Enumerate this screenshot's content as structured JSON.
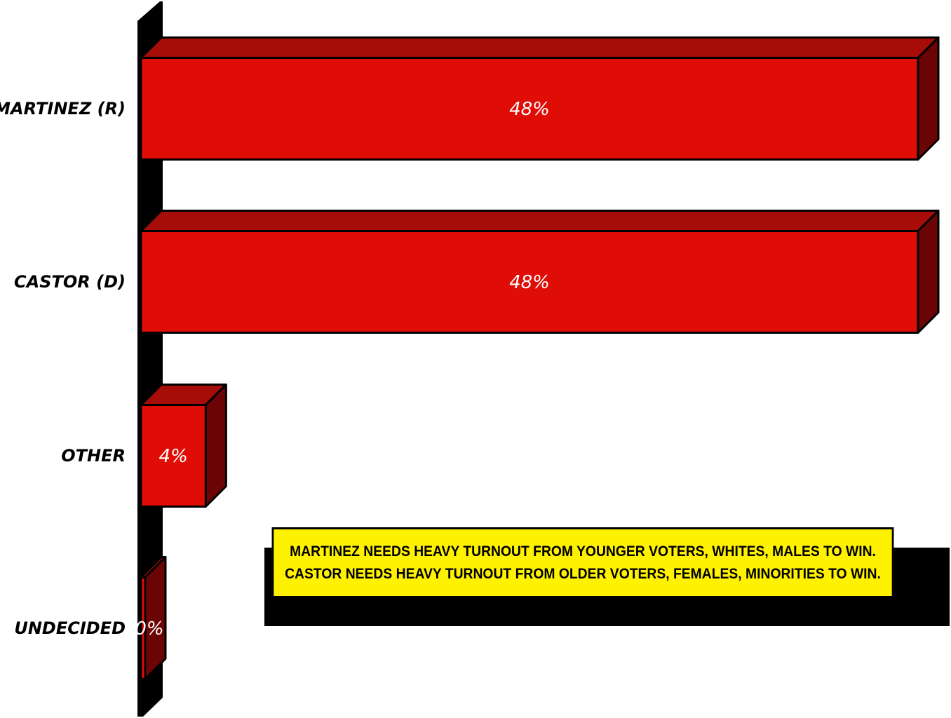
{
  "chart_data": {
    "type": "bar",
    "orientation": "horizontal",
    "style": "3d",
    "categories": [
      "MARTINEZ (R)",
      "CASTOR (D)",
      "OTHER",
      "UNDECIDED"
    ],
    "values": [
      48,
      48,
      4,
      0
    ],
    "value_labels": [
      "48%",
      "48%",
      "4%",
      "0%"
    ],
    "xlim": [
      0,
      48
    ],
    "title": "",
    "xlabel": "",
    "ylabel": "",
    "grid": false,
    "legend": "none",
    "colors": {
      "bar_front": "#e00c06",
      "bar_top": "#a60c08",
      "bar_side": "#6b0405",
      "axis_wall": "#000000"
    }
  },
  "callout": {
    "line1": "MARTINEZ NEEDS HEAVY TURNOUT FROM YOUNGER VOTERS, WHITES, MALES TO WIN.",
    "line2": "CASTOR NEEDS HEAVY TURNOUT FROM OLDER VOTERS,  FEMALES, MINORITIES TO WIN.",
    "background": "#fff200"
  }
}
